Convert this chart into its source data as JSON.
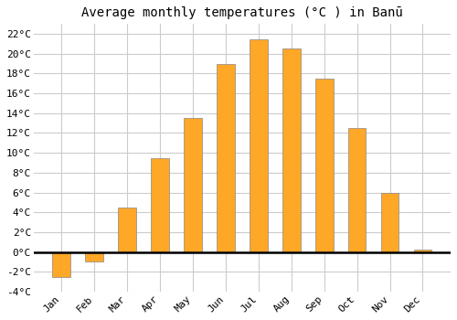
{
  "months": [
    "Jan",
    "Feb",
    "Mar",
    "Apr",
    "May",
    "Jun",
    "Jul",
    "Aug",
    "Sep",
    "Oct",
    "Nov",
    "Dec"
  ],
  "temperatures": [
    -2.5,
    -1.0,
    4.5,
    9.5,
    13.5,
    19.0,
    21.5,
    20.5,
    17.5,
    12.5,
    6.0,
    0.2
  ],
  "bar_color": "#FFA726",
  "bar_edge_color": "#888888",
  "background_color": "#ffffff",
  "plot_bg_color": "#ffffff",
  "grid_color": "#cccccc",
  "title": "Average monthly temperatures (°C ) in Banū",
  "ylim": [
    -4,
    23
  ],
  "yticks": [
    -4,
    -2,
    0,
    2,
    4,
    6,
    8,
    10,
    12,
    14,
    16,
    18,
    20,
    22
  ],
  "title_fontsize": 10,
  "tick_fontsize": 8,
  "figsize": [
    5.0,
    3.5
  ],
  "dpi": 100,
  "bar_width": 0.55
}
